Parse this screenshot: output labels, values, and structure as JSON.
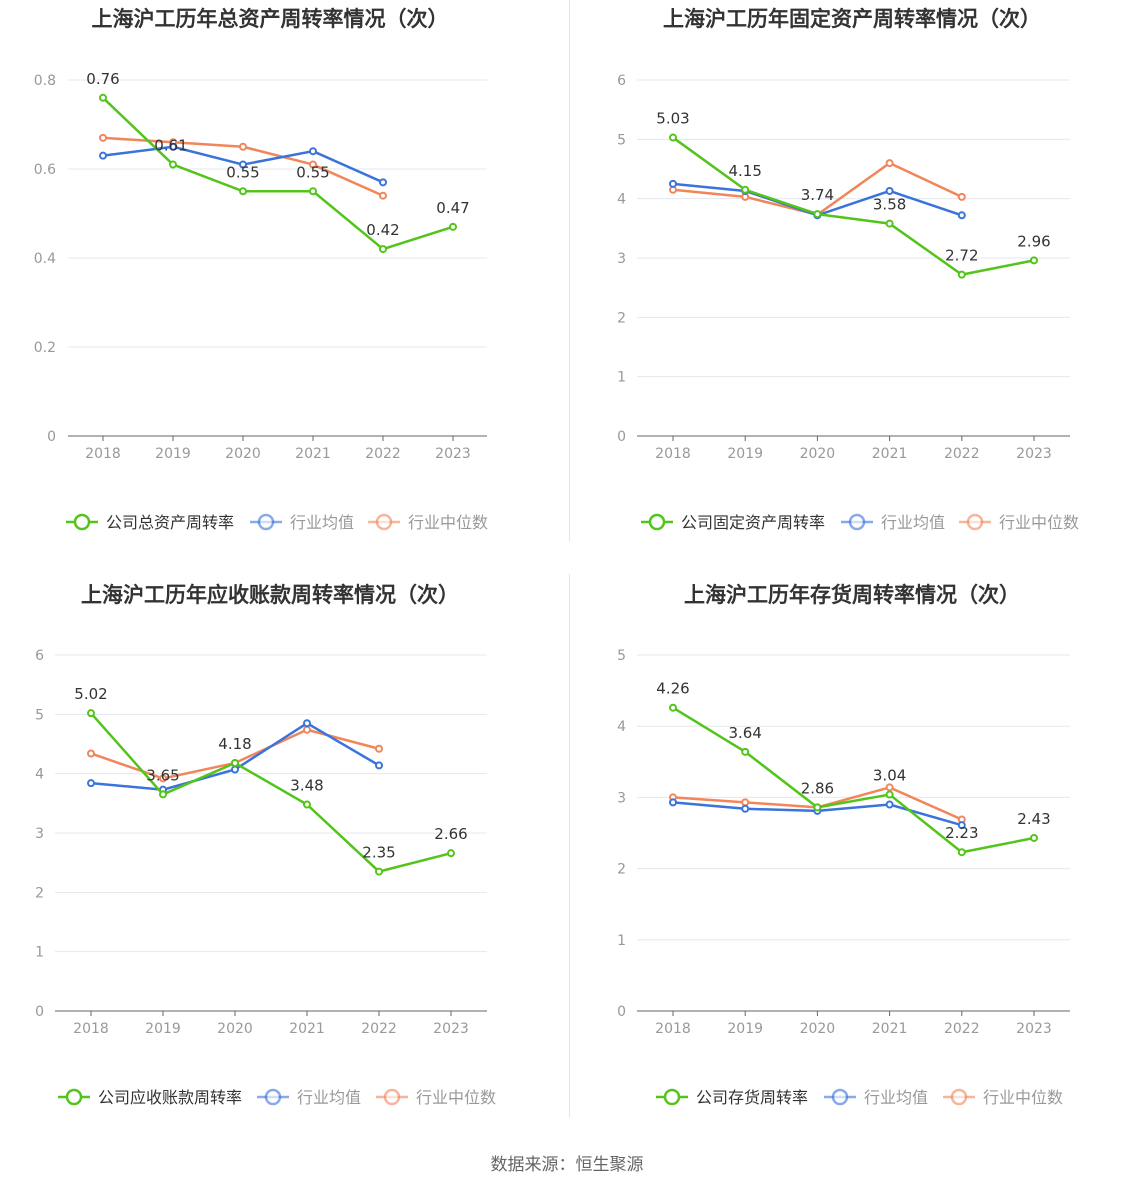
{
  "colors": {
    "company": "#52c41a",
    "avg": "#3a73db",
    "median": "#f0865a",
    "axis": "#999999",
    "grid": "#e4e7f0",
    "title": "#333333"
  },
  "source_text": "数据来源：恒生聚源",
  "chart_data": [
    {
      "type": "line",
      "title": "上海沪工历年总资产周转率情况（次）",
      "x": [
        "2018",
        "2019",
        "2020",
        "2021",
        "2022",
        "2023"
      ],
      "ylim": [
        0,
        0.8
      ],
      "yticks": [
        "0",
        "0.2",
        "0.4",
        "0.6",
        "0.8"
      ],
      "ytick_values": [
        0,
        0.2,
        0.4,
        0.6,
        0.8
      ],
      "grid": true,
      "legend_position": "bottom",
      "series": [
        {
          "name": "公司总资产周转率",
          "role": "company",
          "values": [
            0.76,
            0.61,
            0.55,
            0.55,
            0.42,
            0.47
          ],
          "labels": [
            "0.76",
            "0.61",
            "0.55",
            "0.55",
            "0.42",
            "0.47"
          ]
        },
        {
          "name": "行业均值",
          "role": "avg",
          "values": [
            0.63,
            0.65,
            0.61,
            0.64,
            0.57,
            null
          ]
        },
        {
          "name": "行业中位数",
          "role": "median",
          "values": [
            0.67,
            0.66,
            0.65,
            0.61,
            0.54,
            null
          ]
        }
      ]
    },
    {
      "type": "line",
      "title": "上海沪工历年固定资产周转率情况（次）",
      "x": [
        "2018",
        "2019",
        "2020",
        "2021",
        "2022",
        "2023"
      ],
      "ylim": [
        0,
        6
      ],
      "yticks": [
        "0",
        "1",
        "2",
        "3",
        "4",
        "5",
        "6"
      ],
      "ytick_values": [
        0,
        1,
        2,
        3,
        4,
        5,
        6
      ],
      "grid": true,
      "legend_position": "bottom",
      "series": [
        {
          "name": "公司固定资产周转率",
          "role": "company",
          "values": [
            5.03,
            4.15,
            3.74,
            3.58,
            2.72,
            2.96
          ],
          "labels": [
            "5.03",
            "4.15",
            "3.74",
            "3.58",
            "2.72",
            "2.96"
          ]
        },
        {
          "name": "行业均值",
          "role": "avg",
          "values": [
            4.25,
            4.13,
            3.72,
            4.13,
            3.72,
            null
          ]
        },
        {
          "name": "行业中位数",
          "role": "median",
          "values": [
            4.15,
            4.03,
            3.73,
            4.6,
            4.03,
            null
          ]
        }
      ]
    },
    {
      "type": "line",
      "title": "上海沪工历年应收账款周转率情况（次）",
      "x": [
        "2018",
        "2019",
        "2020",
        "2021",
        "2022",
        "2023"
      ],
      "ylim": [
        0,
        6
      ],
      "yticks": [
        "0",
        "1",
        "2",
        "3",
        "4",
        "5",
        "6"
      ],
      "ytick_values": [
        0,
        1,
        2,
        3,
        4,
        5,
        6
      ],
      "grid": true,
      "legend_position": "bottom",
      "series": [
        {
          "name": "公司应收账款周转率",
          "role": "company",
          "values": [
            5.02,
            3.65,
            4.18,
            3.48,
            2.35,
            2.66
          ],
          "labels": [
            "5.02",
            "3.65",
            "4.18",
            "3.48",
            "2.35",
            "2.66"
          ]
        },
        {
          "name": "行业均值",
          "role": "avg",
          "values": [
            3.84,
            3.73,
            4.07,
            4.85,
            4.14,
            null
          ]
        },
        {
          "name": "行业中位数",
          "role": "median",
          "values": [
            4.34,
            3.92,
            4.18,
            4.74,
            4.42,
            null
          ]
        }
      ]
    },
    {
      "type": "line",
      "title": "上海沪工历年存货周转率情况（次）",
      "x": [
        "2018",
        "2019",
        "2020",
        "2021",
        "2022",
        "2023"
      ],
      "ylim": [
        0,
        5
      ],
      "yticks": [
        "0",
        "1",
        "2",
        "3",
        "4",
        "5"
      ],
      "ytick_values": [
        0,
        1,
        2,
        3,
        4,
        5
      ],
      "grid": true,
      "legend_position": "bottom",
      "series": [
        {
          "name": "公司存货周转率",
          "role": "company",
          "values": [
            4.26,
            3.64,
            2.86,
            3.04,
            2.23,
            2.43
          ],
          "labels": [
            "4.26",
            "3.64",
            "2.86",
            "3.04",
            "2.23",
            "2.43"
          ]
        },
        {
          "name": "行业均值",
          "role": "avg",
          "values": [
            2.93,
            2.84,
            2.81,
            2.9,
            2.61,
            null
          ]
        },
        {
          "name": "行业中位数",
          "role": "median",
          "values": [
            3.0,
            2.93,
            2.86,
            3.14,
            2.69,
            null
          ]
        }
      ]
    }
  ]
}
